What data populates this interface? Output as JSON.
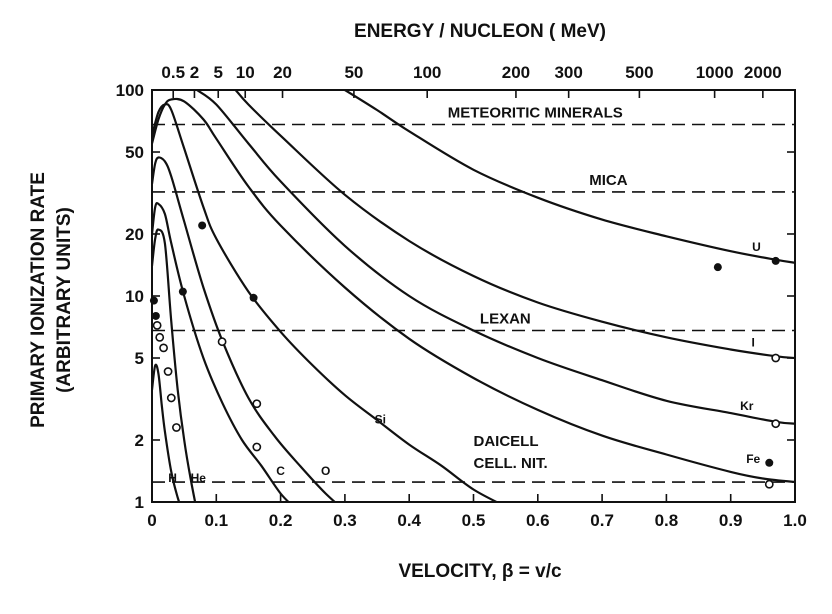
{
  "chart_data": {
    "type": "line",
    "title": "",
    "xlabel": "VELOCITY, β = v/c",
    "top_axis_label": "ENERGY / NUCLEON ( MeV)",
    "ylabel": "PRIMARY IONIZATION RATE",
    "ylabel_sub": "(ARBITRARY UNITS)",
    "xlim": [
      0,
      1.0
    ],
    "ylim": [
      1,
      100
    ],
    "yscale": "log",
    "grid": false,
    "x_ticks": [
      0,
      0.1,
      0.2,
      0.3,
      0.4,
      0.5,
      0.6,
      0.7,
      0.8,
      0.9,
      1.0
    ],
    "x_tick_labels": [
      "0",
      "0.1",
      "0.2",
      "0.3",
      "0.4",
      "0.5",
      "0.6",
      "0.7",
      "0.8",
      "0.9",
      "1.0"
    ],
    "y_ticks": [
      1,
      2,
      5,
      10,
      20,
      50,
      100
    ],
    "y_tick_labels": [
      "1",
      "2",
      "5",
      "10",
      "20",
      "50",
      "100"
    ],
    "top_ticks": [
      {
        "label": "0.5",
        "beta": 0.033
      },
      {
        "label": "2",
        "beta": 0.066
      },
      {
        "label": "5",
        "beta": 0.103
      },
      {
        "label": "10",
        "beta": 0.145
      },
      {
        "label": "20",
        "beta": 0.203
      },
      {
        "label": "50",
        "beta": 0.314
      },
      {
        "label": "100",
        "beta": 0.428
      },
      {
        "label": "200",
        "beta": 0.566
      },
      {
        "label": "300",
        "beta": 0.648
      },
      {
        "label": "500",
        "beta": 0.758
      },
      {
        "label": "1000",
        "beta": 0.875
      },
      {
        "label": "2000",
        "beta": 0.95
      }
    ],
    "thresholds": [
      {
        "label": "METEORITIC MINERALS",
        "y": 68,
        "label_x": 0.46
      },
      {
        "label": "MICA",
        "y": 32,
        "label_x": 0.68
      },
      {
        "label": "LEXAN",
        "y": 6.8,
        "label_x": 0.51
      },
      {
        "label": "DAICELL",
        "label2": "CELL. NIT.",
        "y": 1.25,
        "label_x": 0.5
      }
    ],
    "series": [
      {
        "name": "H",
        "label_x": 0.032,
        "label_y": 1.25,
        "x": [
          0.0,
          0.005,
          0.01,
          0.015,
          0.02,
          0.03,
          0.04,
          0.05
        ],
        "y": [
          3.5,
          4.6,
          4.2,
          3.0,
          2.2,
          1.4,
          1.05,
          0.85
        ]
      },
      {
        "name": "He",
        "label_x": 0.072,
        "label_y": 1.25,
        "x": [
          0.0,
          0.005,
          0.01,
          0.02,
          0.03,
          0.04,
          0.05,
          0.06,
          0.07
        ],
        "y": [
          14,
          19,
          21,
          18,
          7.5,
          3.5,
          2.0,
          1.3,
          0.9
        ]
      },
      {
        "name": "C",
        "label_x": 0.2,
        "label_y": 1.35,
        "x": [
          0.0,
          0.005,
          0.01,
          0.02,
          0.03,
          0.05,
          0.08,
          0.11,
          0.14,
          0.17,
          0.2,
          0.22
        ],
        "y": [
          20,
          27,
          28,
          25,
          18,
          10,
          5.0,
          3.0,
          2.0,
          1.5,
          1.1,
          0.95
        ]
      },
      {
        "name": "O",
        "label_x": 0.27,
        "label_y": 1.35,
        "x": [
          0.0,
          0.005,
          0.01,
          0.02,
          0.03,
          0.05,
          0.08,
          0.11,
          0.15,
          0.19,
          0.23,
          0.27,
          0.31
        ],
        "y": [
          35,
          44,
          47,
          45,
          38,
          23,
          11,
          6.0,
          3.2,
          2.1,
          1.5,
          1.1,
          0.85
        ]
      },
      {
        "name": "Si",
        "label_x": 0.355,
        "label_y": 2.4,
        "x": [
          0.0,
          0.01,
          0.02,
          0.03,
          0.05,
          0.08,
          0.1,
          0.15,
          0.2,
          0.25,
          0.3,
          0.35,
          0.4,
          0.45,
          0.5,
          0.55
        ],
        "y": [
          60,
          78,
          85,
          80,
          52,
          27,
          19,
          10.5,
          6.7,
          4.6,
          3.3,
          2.5,
          1.9,
          1.5,
          1.15,
          0.95
        ]
      },
      {
        "name": "Fe",
        "label_x": 0.935,
        "label_y": 1.55,
        "x": [
          0.0,
          0.01,
          0.02,
          0.03,
          0.05,
          0.08,
          0.1,
          0.15,
          0.2,
          0.3,
          0.4,
          0.5,
          0.6,
          0.7,
          0.8,
          0.9,
          0.95,
          1.0
        ],
        "y": [
          55,
          72,
          85,
          90,
          88,
          72,
          58,
          34,
          22,
          11,
          6.2,
          4.0,
          2.8,
          2.1,
          1.7,
          1.4,
          1.3,
          1.25
        ]
      },
      {
        "name": "Kr",
        "label_x": 0.925,
        "label_y": 2.8,
        "x": [
          0.07,
          0.1,
          0.15,
          0.2,
          0.3,
          0.4,
          0.5,
          0.6,
          0.7,
          0.8,
          0.9,
          0.97,
          1.0
        ],
        "y": [
          100,
          85,
          55,
          36,
          17.5,
          10,
          6.8,
          5.0,
          3.9,
          3.1,
          2.7,
          2.45,
          2.4
        ]
      },
      {
        "name": "I",
        "label_x": 0.935,
        "label_y": 5.7,
        "x": [
          0.13,
          0.15,
          0.2,
          0.3,
          0.4,
          0.5,
          0.6,
          0.7,
          0.8,
          0.9,
          0.97,
          1.0
        ],
        "y": [
          100,
          85,
          60,
          31,
          18.5,
          12.5,
          9.3,
          7.5,
          6.3,
          5.5,
          5.1,
          5.0
        ]
      },
      {
        "name": "U",
        "label_x": 0.94,
        "label_y": 16.5,
        "x": [
          0.3,
          0.35,
          0.4,
          0.5,
          0.6,
          0.7,
          0.8,
          0.9,
          0.97,
          1.0
        ],
        "y": [
          100,
          80,
          63,
          41,
          30,
          23.5,
          19.5,
          16.5,
          15,
          14.5
        ]
      }
    ],
    "points_filled": [
      {
        "x": 0.003,
        "y": 9.5
      },
      {
        "x": 0.006,
        "y": 8.0
      },
      {
        "x": 0.078,
        "y": 22
      },
      {
        "x": 0.048,
        "y": 10.5
      },
      {
        "x": 0.158,
        "y": 9.8
      },
      {
        "x": 0.88,
        "y": 13.8
      },
      {
        "x": 0.97,
        "y": 14.8
      },
      {
        "x": 0.96,
        "y": 1.55
      }
    ],
    "points_open": [
      {
        "x": 0.008,
        "y": 7.2
      },
      {
        "x": 0.012,
        "y": 6.3
      },
      {
        "x": 0.018,
        "y": 5.6
      },
      {
        "x": 0.025,
        "y": 4.3
      },
      {
        "x": 0.03,
        "y": 3.2
      },
      {
        "x": 0.038,
        "y": 2.3
      },
      {
        "x": 0.109,
        "y": 6.0
      },
      {
        "x": 0.163,
        "y": 3.0
      },
      {
        "x": 0.163,
        "y": 1.85
      },
      {
        "x": 0.97,
        "y": 5.0
      },
      {
        "x": 0.97,
        "y": 2.4
      },
      {
        "x": 0.96,
        "y": 1.22
      }
    ]
  }
}
